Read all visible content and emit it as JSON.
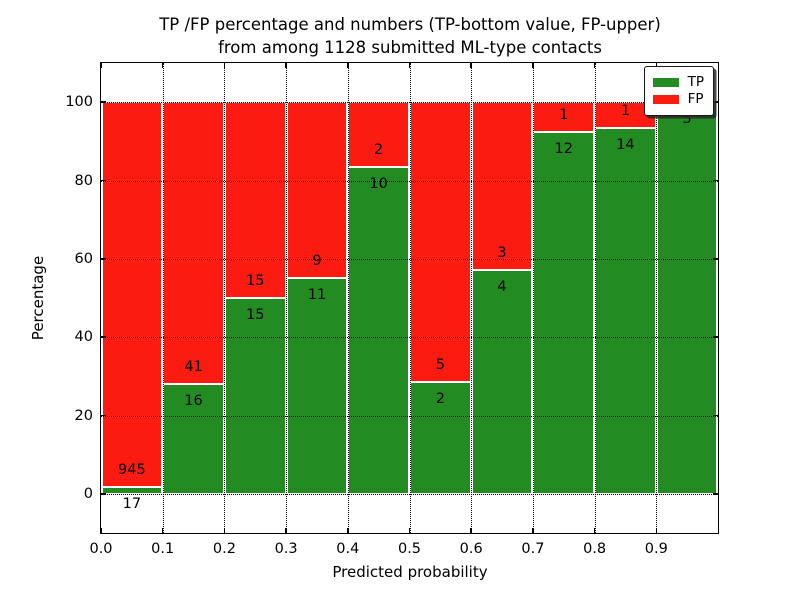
{
  "figure": {
    "title_line1": "TP /FP percentage and numbers (TP-bottom value, FP-upper)",
    "title_line2": "from among 1128 submitted ML-type contacts",
    "xlabel": "Predicted probability",
    "ylabel": "Percentage"
  },
  "legend": {
    "position": "upper right",
    "items": [
      {
        "label": "TP",
        "color": "#228b22"
      },
      {
        "label": "FP",
        "color": "#fb1b10"
      }
    ]
  },
  "chart_data": {
    "type": "bar",
    "stacked": true,
    "title": "TP /FP percentage and numbers (TP-bottom value, FP-upper)\nfrom among 1128 submitted ML-type contacts",
    "xlabel": "Predicted probability",
    "ylabel": "Percentage",
    "total_contacts": 1128,
    "xlim": [
      0.0,
      1.0
    ],
    "ylim": [
      -10,
      110
    ],
    "grid": "dotted, drawn over bars",
    "legend_position": "upper right",
    "bin_edges": [
      0.0,
      0.1,
      0.2,
      0.3,
      0.4,
      0.5,
      0.6,
      0.7,
      0.8,
      0.9,
      1.0
    ],
    "xtick_labels": [
      "0.0",
      "0.1",
      "0.2",
      "0.3",
      "0.4",
      "0.5",
      "0.6",
      "0.7",
      "0.8",
      "0.9"
    ],
    "xtick_values": [
      0.0,
      0.1,
      0.2,
      0.3,
      0.4,
      0.5,
      0.6,
      0.7,
      0.8,
      0.9
    ],
    "ytick_labels": [
      "0",
      "20",
      "40",
      "60",
      "80",
      "100"
    ],
    "ytick_values": [
      0,
      20,
      40,
      60,
      80,
      100
    ],
    "series": [
      {
        "name": "TP",
        "color": "#228b22",
        "counts": [
          17,
          16,
          15,
          11,
          10,
          2,
          4,
          12,
          14,
          5
        ],
        "percent": [
          1.77,
          28.07,
          50.0,
          55.0,
          83.33,
          28.57,
          57.14,
          92.31,
          93.33,
          100.0
        ]
      },
      {
        "name": "FP",
        "color": "#fb1b10",
        "counts": [
          945,
          41,
          15,
          9,
          2,
          5,
          3,
          1,
          1,
          0
        ],
        "percent": [
          98.23,
          71.93,
          50.0,
          45.0,
          16.67,
          71.43,
          42.86,
          7.69,
          6.67,
          0.0
        ]
      }
    ]
  }
}
